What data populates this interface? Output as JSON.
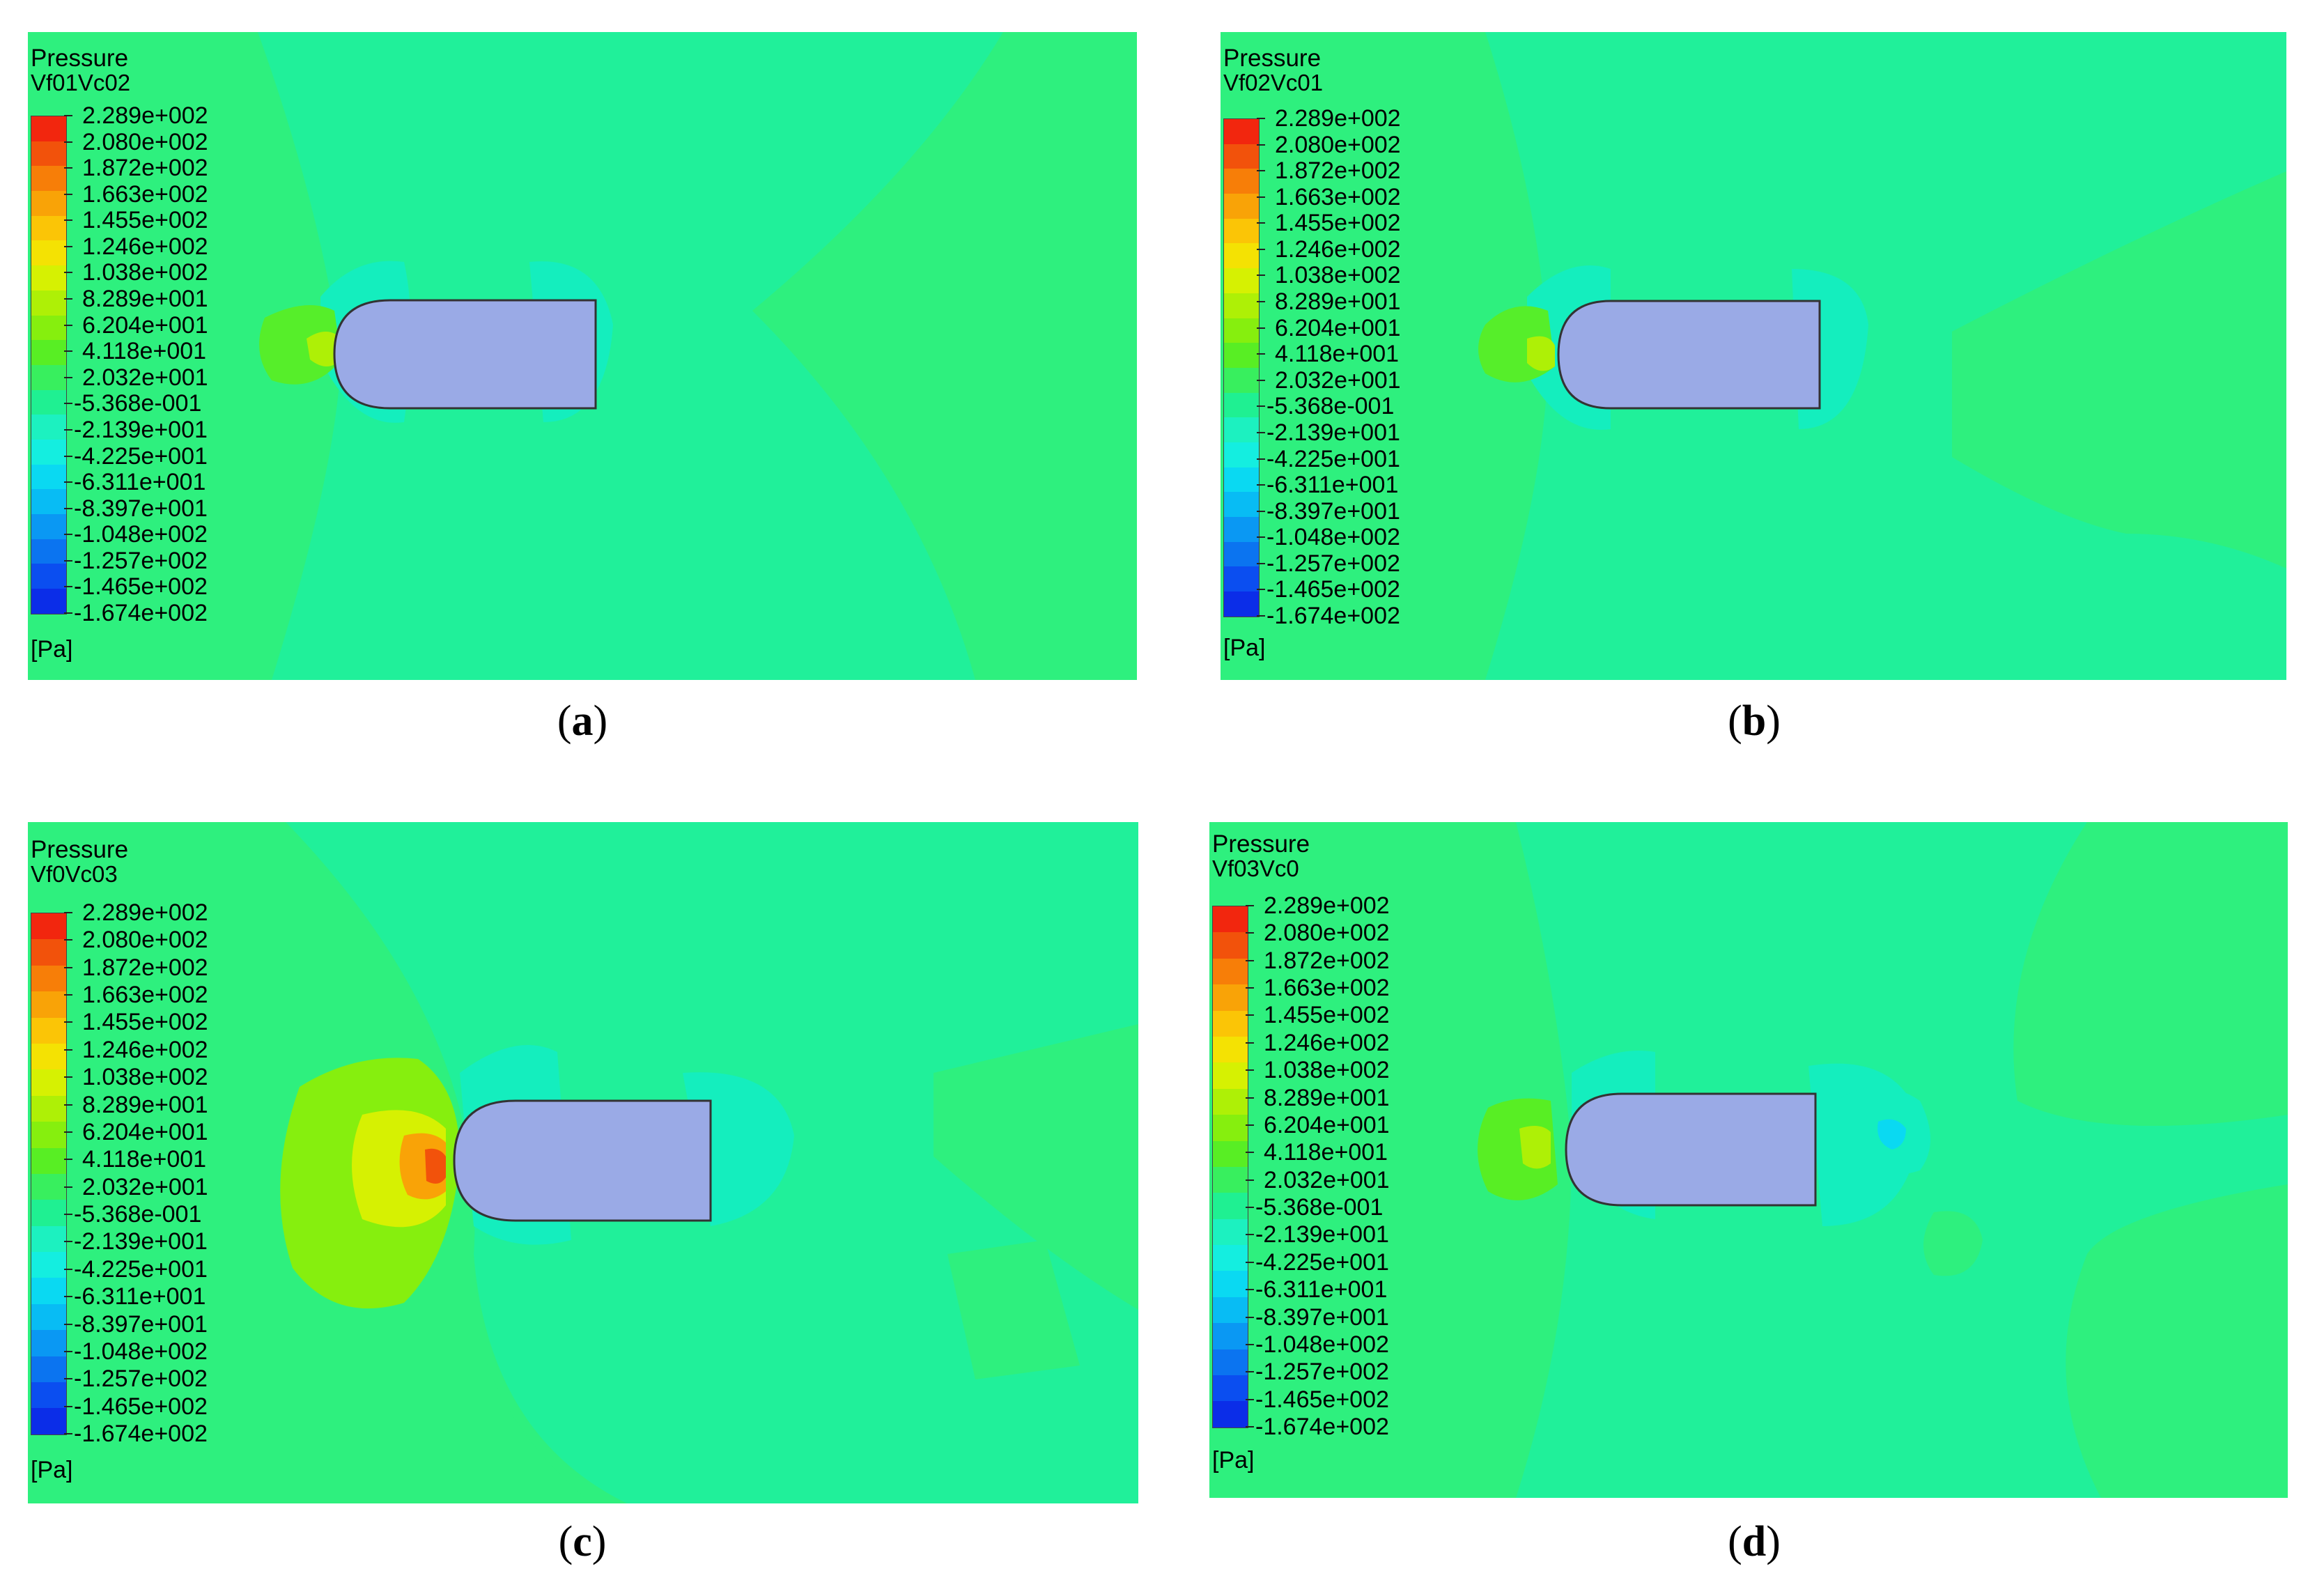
{
  "legend": {
    "title": "Pressure",
    "unit": "[Pa]",
    "levels": [
      "2.289e+002",
      "2.080e+002",
      "1.872e+002",
      "1.663e+002",
      "1.455e+002",
      "1.246e+002",
      "1.038e+002",
      "8.289e+001",
      "6.204e+001",
      "4.118e+001",
      "2.032e+001",
      "-5.368e-001",
      "-2.139e+001",
      "-4.225e+001",
      "-6.311e+001",
      "-8.397e+001",
      "-1.048e+002",
      "-1.257e+002",
      "-1.465e+002",
      "-1.674e+002"
    ],
    "colors": [
      "#f2260e",
      "#f2520b",
      "#f77e08",
      "#f9a307",
      "#fbc506",
      "#f4e203",
      "#d6f102",
      "#aef006",
      "#86ef0e",
      "#58ee24",
      "#38ef5e",
      "#1ff092",
      "#1cf1c0",
      "#14eee0",
      "#0ad9f2",
      "#08bcf4",
      "#0a98f3",
      "#0b74f0",
      "#0b4ef0",
      "#0b2de8"
    ]
  },
  "panels": [
    {
      "id": "a",
      "case": "Vf01Vc02",
      "caption_letter": "a"
    },
    {
      "id": "b",
      "case": "Vf02Vc01",
      "caption_letter": "b"
    },
    {
      "id": "c",
      "case": "Vf0Vc03",
      "caption_letter": "c"
    },
    {
      "id": "d",
      "case": "Vf03Vc0",
      "caption_letter": "d"
    }
  ],
  "captions": {
    "open": "(",
    "close": ")"
  }
}
